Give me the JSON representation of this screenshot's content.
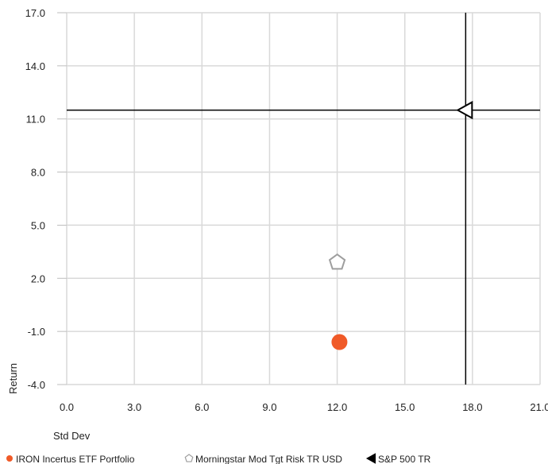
{
  "chart_data": {
    "type": "scatter",
    "xlabel": "Std Dev",
    "ylabel": "Return",
    "xlim": [
      0.0,
      21.0
    ],
    "ylim": [
      -4.0,
      17.0
    ],
    "x_ticks": [
      "0.0",
      "3.0",
      "6.0",
      "9.0",
      "12.0",
      "15.0",
      "18.0",
      "21.0"
    ],
    "y_ticks": [
      "-4.0",
      "-1.0",
      "2.0",
      "5.0",
      "8.0",
      "11.0",
      "14.0",
      "17.0"
    ],
    "grid": true,
    "legend_position": "bottom",
    "series": [
      {
        "name": "IRON Incertus ETF Portfolio",
        "marker": "circle",
        "color": "#f05a28",
        "x": 12.1,
        "y": -1.6
      },
      {
        "name": "Morningstar Mod Tgt Risk TR USD",
        "marker": "pentagon",
        "color": "#9e9e9e",
        "x": 12.0,
        "y": 2.9
      },
      {
        "name": "S&P 500 TR",
        "marker": "triangle-left",
        "color": "#000000",
        "x": 17.7,
        "y": 11.5
      }
    ],
    "reference_lines": {
      "x": 17.7,
      "y": 11.5,
      "color": "#000000"
    }
  }
}
